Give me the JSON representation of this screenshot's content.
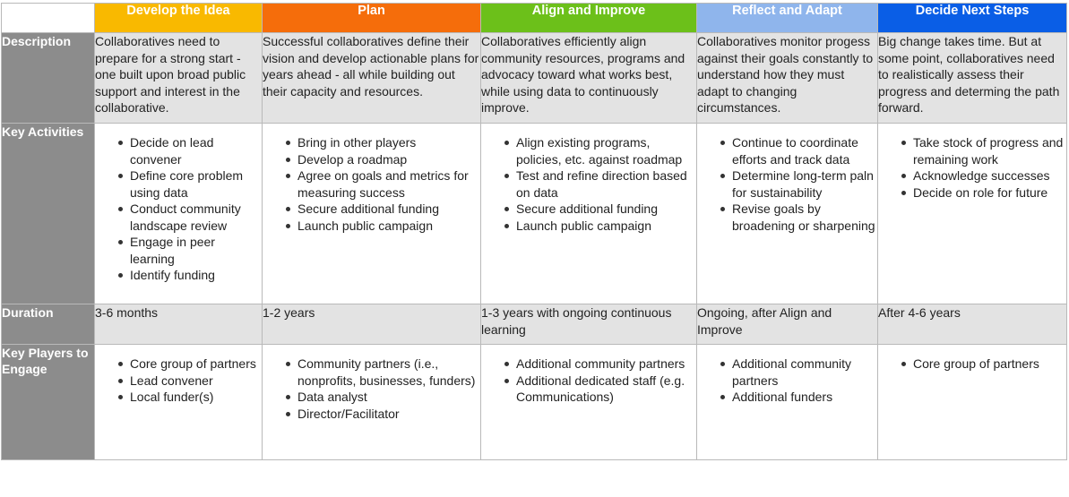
{
  "phases": [
    {
      "label": "Develop the Idea",
      "color": "#f9b900"
    },
    {
      "label": "Plan",
      "color": "#f56d0b"
    },
    {
      "label": "Align and Improve",
      "color": "#6cc01a"
    },
    {
      "label": "Reflect and Adapt",
      "color": "#8fb5ec"
    },
    {
      "label": "Decide Next Steps",
      "color": "#0a5ee6"
    }
  ],
  "row_headers": {
    "description": "Description",
    "key_activities": "Key Activities",
    "duration": "Duration",
    "key_players": "Key Players to Engage"
  },
  "description": [
    "Collaboratives need to prepare for a strong start - one built upon broad public support and interest in the collaborative.",
    "Successful collaboratives define their vision and develop actionable plans for years ahead - all while building out their capacity and resources.",
    "Collaboratives efficiently align community resources, programs and advocacy toward what works best, while using data to continuously improve.",
    "Collaboratives monitor progess against their goals constantly to understand how they must adapt to changing circumstances.",
    "Big change takes time. But at some point, collaboratives need to realistically assess their progress and determing the path forward."
  ],
  "key_activities": [
    [
      "Decide on lead convener",
      "Define core problem using data",
      "Conduct community landscape review",
      "Engage in peer learning",
      "Identify funding"
    ],
    [
      "Bring in other players",
      "Develop a roadmap",
      "Agree on goals and metrics for measuring success",
      "Secure additional funding",
      "Launch public campaign"
    ],
    [
      "Align existing programs, policies, etc. against roadmap",
      "Test and refine direction based on data",
      "Secure additional funding",
      "Launch public campaign"
    ],
    [
      "Continue to coordinate efforts and track data",
      "Determine long-term paln for sustainability",
      "Revise goals by broadening or sharpening"
    ],
    [
      "Take stock of progress and remaining work",
      "Acknowledge successes",
      "Decide on role for future"
    ]
  ],
  "duration": [
    "3-6 months",
    "1-2 years",
    "1-3 years with ongoing continuous learning",
    "Ongoing, after Align and Improve",
    "After 4-6 years"
  ],
  "key_players": [
    [
      "Core group of partners",
      "Lead convener",
      "Local funder(s)"
    ],
    [
      "Community partners (i.e., nonprofits, businesses, funders)",
      "Data analyst",
      "Director/Facilitator"
    ],
    [
      "Additional community partners",
      "Additional dedicated staff (e.g. Communications)"
    ],
    [
      "Additional community partners",
      "Additional funders"
    ],
    [
      "Core group of partners"
    ]
  ]
}
